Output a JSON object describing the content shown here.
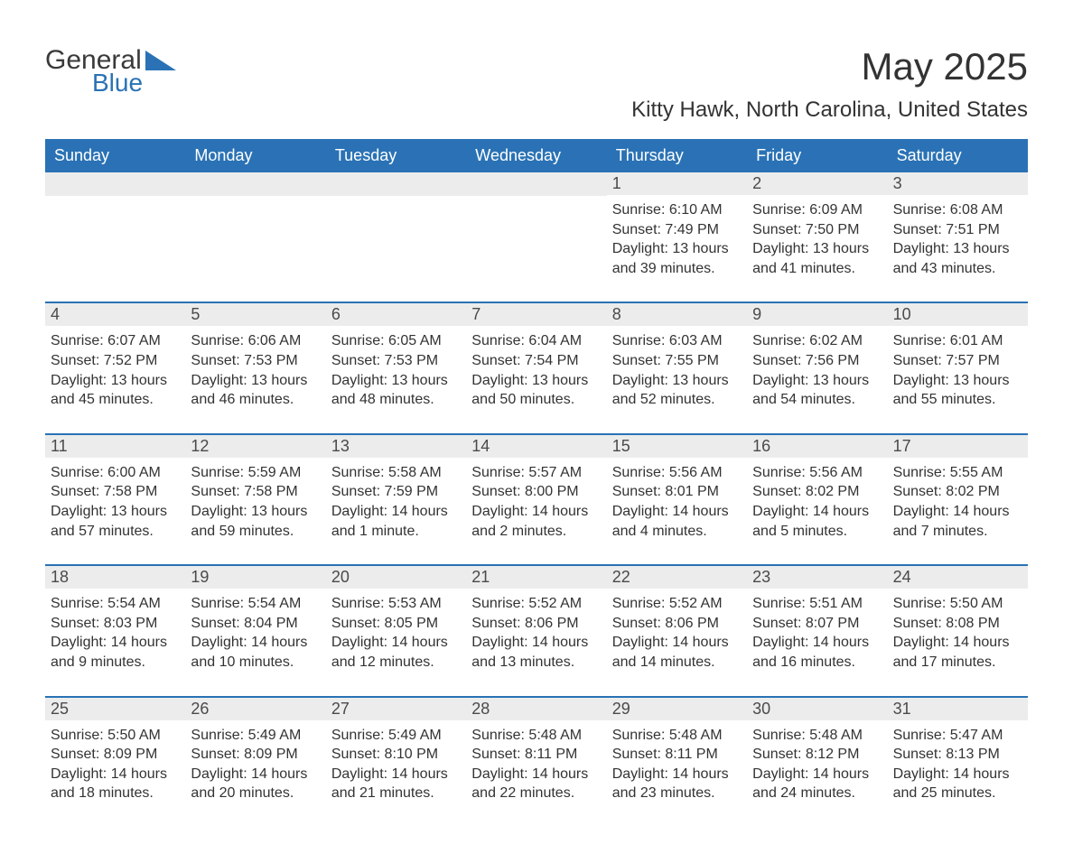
{
  "brand": {
    "part1": "General",
    "part2": "Blue"
  },
  "title": "May 2025",
  "location": "Kitty Hawk, North Carolina, United States",
  "colors": {
    "header_bg": "#2a72b5",
    "header_text": "#ffffff",
    "daynum_bg": "#ececec",
    "text": "#333333",
    "logo_blue": "#2a72b5"
  },
  "day_names": [
    "Sunday",
    "Monday",
    "Tuesday",
    "Wednesday",
    "Thursday",
    "Friday",
    "Saturday"
  ],
  "weeks": [
    [
      {
        "n": "",
        "sunrise": "",
        "sunset": "",
        "daylight": ""
      },
      {
        "n": "",
        "sunrise": "",
        "sunset": "",
        "daylight": ""
      },
      {
        "n": "",
        "sunrise": "",
        "sunset": "",
        "daylight": ""
      },
      {
        "n": "",
        "sunrise": "",
        "sunset": "",
        "daylight": ""
      },
      {
        "n": "1",
        "sunrise": "Sunrise: 6:10 AM",
        "sunset": "Sunset: 7:49 PM",
        "daylight": "Daylight: 13 hours and 39 minutes."
      },
      {
        "n": "2",
        "sunrise": "Sunrise: 6:09 AM",
        "sunset": "Sunset: 7:50 PM",
        "daylight": "Daylight: 13 hours and 41 minutes."
      },
      {
        "n": "3",
        "sunrise": "Sunrise: 6:08 AM",
        "sunset": "Sunset: 7:51 PM",
        "daylight": "Daylight: 13 hours and 43 minutes."
      }
    ],
    [
      {
        "n": "4",
        "sunrise": "Sunrise: 6:07 AM",
        "sunset": "Sunset: 7:52 PM",
        "daylight": "Daylight: 13 hours and 45 minutes."
      },
      {
        "n": "5",
        "sunrise": "Sunrise: 6:06 AM",
        "sunset": "Sunset: 7:53 PM",
        "daylight": "Daylight: 13 hours and 46 minutes."
      },
      {
        "n": "6",
        "sunrise": "Sunrise: 6:05 AM",
        "sunset": "Sunset: 7:53 PM",
        "daylight": "Daylight: 13 hours and 48 minutes."
      },
      {
        "n": "7",
        "sunrise": "Sunrise: 6:04 AM",
        "sunset": "Sunset: 7:54 PM",
        "daylight": "Daylight: 13 hours and 50 minutes."
      },
      {
        "n": "8",
        "sunrise": "Sunrise: 6:03 AM",
        "sunset": "Sunset: 7:55 PM",
        "daylight": "Daylight: 13 hours and 52 minutes."
      },
      {
        "n": "9",
        "sunrise": "Sunrise: 6:02 AM",
        "sunset": "Sunset: 7:56 PM",
        "daylight": "Daylight: 13 hours and 54 minutes."
      },
      {
        "n": "10",
        "sunrise": "Sunrise: 6:01 AM",
        "sunset": "Sunset: 7:57 PM",
        "daylight": "Daylight: 13 hours and 55 minutes."
      }
    ],
    [
      {
        "n": "11",
        "sunrise": "Sunrise: 6:00 AM",
        "sunset": "Sunset: 7:58 PM",
        "daylight": "Daylight: 13 hours and 57 minutes."
      },
      {
        "n": "12",
        "sunrise": "Sunrise: 5:59 AM",
        "sunset": "Sunset: 7:58 PM",
        "daylight": "Daylight: 13 hours and 59 minutes."
      },
      {
        "n": "13",
        "sunrise": "Sunrise: 5:58 AM",
        "sunset": "Sunset: 7:59 PM",
        "daylight": "Daylight: 14 hours and 1 minute."
      },
      {
        "n": "14",
        "sunrise": "Sunrise: 5:57 AM",
        "sunset": "Sunset: 8:00 PM",
        "daylight": "Daylight: 14 hours and 2 minutes."
      },
      {
        "n": "15",
        "sunrise": "Sunrise: 5:56 AM",
        "sunset": "Sunset: 8:01 PM",
        "daylight": "Daylight: 14 hours and 4 minutes."
      },
      {
        "n": "16",
        "sunrise": "Sunrise: 5:56 AM",
        "sunset": "Sunset: 8:02 PM",
        "daylight": "Daylight: 14 hours and 5 minutes."
      },
      {
        "n": "17",
        "sunrise": "Sunrise: 5:55 AM",
        "sunset": "Sunset: 8:02 PM",
        "daylight": "Daylight: 14 hours and 7 minutes."
      }
    ],
    [
      {
        "n": "18",
        "sunrise": "Sunrise: 5:54 AM",
        "sunset": "Sunset: 8:03 PM",
        "daylight": "Daylight: 14 hours and 9 minutes."
      },
      {
        "n": "19",
        "sunrise": "Sunrise: 5:54 AM",
        "sunset": "Sunset: 8:04 PM",
        "daylight": "Daylight: 14 hours and 10 minutes."
      },
      {
        "n": "20",
        "sunrise": "Sunrise: 5:53 AM",
        "sunset": "Sunset: 8:05 PM",
        "daylight": "Daylight: 14 hours and 12 minutes."
      },
      {
        "n": "21",
        "sunrise": "Sunrise: 5:52 AM",
        "sunset": "Sunset: 8:06 PM",
        "daylight": "Daylight: 14 hours and 13 minutes."
      },
      {
        "n": "22",
        "sunrise": "Sunrise: 5:52 AM",
        "sunset": "Sunset: 8:06 PM",
        "daylight": "Daylight: 14 hours and 14 minutes."
      },
      {
        "n": "23",
        "sunrise": "Sunrise: 5:51 AM",
        "sunset": "Sunset: 8:07 PM",
        "daylight": "Daylight: 14 hours and 16 minutes."
      },
      {
        "n": "24",
        "sunrise": "Sunrise: 5:50 AM",
        "sunset": "Sunset: 8:08 PM",
        "daylight": "Daylight: 14 hours and 17 minutes."
      }
    ],
    [
      {
        "n": "25",
        "sunrise": "Sunrise: 5:50 AM",
        "sunset": "Sunset: 8:09 PM",
        "daylight": "Daylight: 14 hours and 18 minutes."
      },
      {
        "n": "26",
        "sunrise": "Sunrise: 5:49 AM",
        "sunset": "Sunset: 8:09 PM",
        "daylight": "Daylight: 14 hours and 20 minutes."
      },
      {
        "n": "27",
        "sunrise": "Sunrise: 5:49 AM",
        "sunset": "Sunset: 8:10 PM",
        "daylight": "Daylight: 14 hours and 21 minutes."
      },
      {
        "n": "28",
        "sunrise": "Sunrise: 5:48 AM",
        "sunset": "Sunset: 8:11 PM",
        "daylight": "Daylight: 14 hours and 22 minutes."
      },
      {
        "n": "29",
        "sunrise": "Sunrise: 5:48 AM",
        "sunset": "Sunset: 8:11 PM",
        "daylight": "Daylight: 14 hours and 23 minutes."
      },
      {
        "n": "30",
        "sunrise": "Sunrise: 5:48 AM",
        "sunset": "Sunset: 8:12 PM",
        "daylight": "Daylight: 14 hours and 24 minutes."
      },
      {
        "n": "31",
        "sunrise": "Sunrise: 5:47 AM",
        "sunset": "Sunset: 8:13 PM",
        "daylight": "Daylight: 14 hours and 25 minutes."
      }
    ]
  ]
}
